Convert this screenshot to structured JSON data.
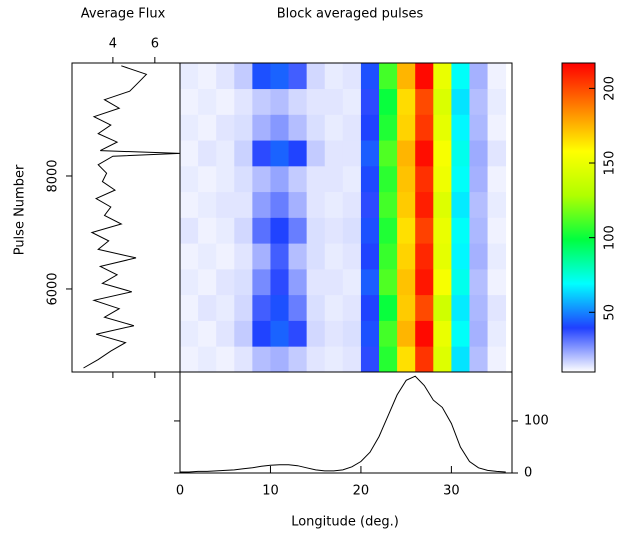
{
  "chart_data": [
    {
      "type": "line",
      "title": "Average Flux",
      "ylabel": "Pulse Number",
      "color": "#000000",
      "y": [
        4600,
        4750,
        4900,
        5050,
        5200,
        5350,
        5500,
        5650,
        5800,
        5950,
        6100,
        6250,
        6400,
        6550,
        6700,
        6850,
        7000,
        7150,
        7300,
        7450,
        7600,
        7750,
        7900,
        8050,
        8200,
        8350,
        8400,
        8450,
        8600,
        8750,
        8900,
        9050,
        9200,
        9350,
        9500,
        9650,
        9800,
        9950
      ],
      "values": [
        2.6,
        3.3,
        3.9,
        4.6,
        3.2,
        5.0,
        3.6,
        4.3,
        3.1,
        4.9,
        3.5,
        4.2,
        3.4,
        5.1,
        3.3,
        3.8,
        3.0,
        4.4,
        3.6,
        3.9,
        3.2,
        4.1,
        3.5,
        3.7,
        3.3,
        4.0,
        7.2,
        3.4,
        4.2,
        3.3,
        3.9,
        3.1,
        4.3,
        3.6,
        4.8,
        5.2,
        5.6,
        4.4
      ],
      "xlim": [
        2.05,
        7.2
      ],
      "xticks": [
        4,
        6
      ],
      "ylim": [
        4530,
        10000
      ],
      "yticks": [
        6000,
        8000
      ]
    },
    {
      "type": "heatmap",
      "title": "Block averaged pulses",
      "x_edges": [
        0,
        2,
        4,
        6,
        8,
        10,
        12,
        14,
        16,
        18,
        20,
        22,
        24,
        26,
        28,
        30,
        32,
        34,
        36
      ],
      "y_edges": [
        4530,
        4986,
        5442,
        5898,
        6354,
        6810,
        7266,
        7722,
        8178,
        8634,
        9090,
        9546,
        10000
      ],
      "values": [
        [
          12,
          13,
          12,
          14,
          20,
          22,
          18,
          14,
          13,
          14,
          38,
          105,
          165,
          205,
          145,
          65,
          20,
          12
        ],
        [
          13,
          12,
          14,
          18,
          40,
          45,
          38,
          16,
          14,
          15,
          42,
          110,
          175,
          215,
          150,
          70,
          22,
          13
        ],
        [
          12,
          14,
          13,
          16,
          35,
          42,
          30,
          15,
          13,
          14,
          40,
          100,
          170,
          200,
          140,
          66,
          21,
          14
        ],
        [
          13,
          12,
          14,
          15,
          28,
          38,
          25,
          14,
          14,
          13,
          44,
          112,
          172,
          212,
          155,
          72,
          20,
          12
        ],
        [
          12,
          13,
          12,
          14,
          22,
          35,
          20,
          15,
          13,
          14,
          40,
          108,
          168,
          208,
          148,
          68,
          22,
          13
        ],
        [
          14,
          12,
          13,
          16,
          32,
          40,
          30,
          15,
          14,
          15,
          42,
          104,
          165,
          202,
          150,
          70,
          21,
          12
        ],
        [
          12,
          13,
          14,
          14,
          25,
          30,
          22,
          14,
          13,
          14,
          38,
          110,
          170,
          210,
          145,
          66,
          20,
          13
        ],
        [
          13,
          12,
          13,
          15,
          20,
          24,
          18,
          14,
          14,
          13,
          41,
          106,
          172,
          206,
          152,
          70,
          22,
          12
        ],
        [
          12,
          14,
          13,
          17,
          38,
          45,
          40,
          18,
          14,
          14,
          44,
          112,
          175,
          214,
          155,
          72,
          23,
          14
        ],
        [
          13,
          12,
          14,
          15,
          22,
          26,
          20,
          15,
          13,
          14,
          40,
          104,
          168,
          204,
          148,
          68,
          21,
          12
        ],
        [
          12,
          13,
          12,
          14,
          18,
          20,
          16,
          14,
          14,
          13,
          38,
          100,
          166,
          200,
          144,
          65,
          20,
          13
        ],
        [
          13,
          12,
          14,
          18,
          42,
          45,
          35,
          16,
          13,
          14,
          42,
          110,
          175,
          215,
          150,
          70,
          22,
          12
        ]
      ],
      "colormap": [
        "#ffffff",
        "#2040ff",
        "#00ffff",
        "#00ff40",
        "#b0ff00",
        "#ffff00",
        "#ff8000",
        "#ff0000"
      ],
      "xlim": [
        0,
        36.7
      ],
      "ylim": [
        4530,
        10000
      ],
      "zlim": [
        10,
        217
      ],
      "zticks": [
        50,
        100,
        150,
        200
      ]
    },
    {
      "type": "line",
      "xlabel": "Longitude (deg.)",
      "color": "#000000",
      "x": [
        0,
        1,
        2,
        3,
        4,
        5,
        6,
        7,
        8,
        9,
        10,
        11,
        12,
        13,
        14,
        15,
        16,
        17,
        18,
        19,
        20,
        21,
        22,
        23,
        24,
        25,
        26,
        27,
        28,
        29,
        30,
        31,
        32,
        33,
        34,
        35,
        36
      ],
      "values": [
        2,
        2,
        3,
        3,
        4,
        5,
        6,
        8,
        10,
        13,
        15,
        16,
        16,
        14,
        10,
        6,
        4,
        4,
        6,
        12,
        22,
        40,
        70,
        110,
        150,
        178,
        186,
        168,
        140,
        126,
        95,
        50,
        22,
        10,
        5,
        3,
        2
      ],
      "xlim": [
        0,
        36.7
      ],
      "xticks": [
        0,
        10,
        20,
        30
      ],
      "ylim": [
        0,
        194
      ],
      "yticks": [
        0,
        100
      ]
    }
  ]
}
